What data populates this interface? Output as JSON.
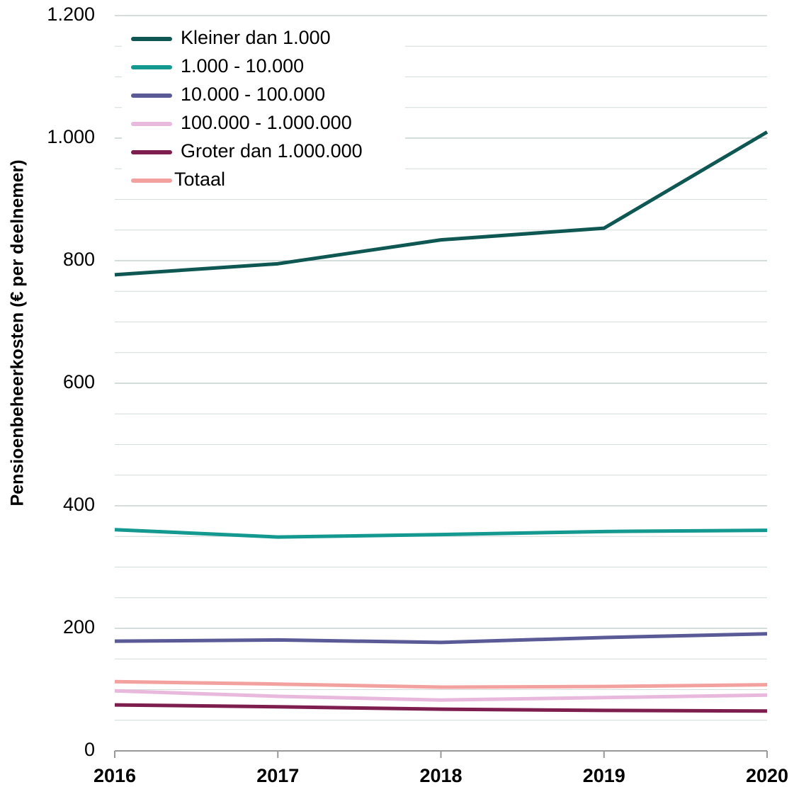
{
  "chart_data": {
    "type": "line",
    "y_label": "Pensioenbeheerkosten (€ per deelnemer)",
    "categories": [
      "2016",
      "2017",
      "2018",
      "2019",
      "2020"
    ],
    "series": [
      {
        "name": "Kleiner dan 1.000",
        "color": "#0f5752",
        "values": [
          777,
          795,
          834,
          853,
          1010
        ]
      },
      {
        "name": "1.000 - 10.000",
        "color": "#13998f",
        "values": [
          361,
          349,
          353,
          358,
          360
        ]
      },
      {
        "name": "10.000 - 100.000",
        "color": "#5a5a96",
        "values": [
          179,
          181,
          177,
          185,
          191
        ]
      },
      {
        "name": "100.000 - 1.000.000",
        "color": "#e8b9dc",
        "values": [
          98,
          89,
          83,
          87,
          91
        ]
      },
      {
        "name": "Groter dan 1.000.000",
        "color": "#7e1e4f",
        "values": [
          75,
          72,
          68,
          66,
          65
        ]
      },
      {
        "name": "Totaal",
        "color": "#f2a19e",
        "values": [
          113,
          109,
          104,
          105,
          108
        ]
      }
    ],
    "ylim": [
      0,
      1200
    ],
    "yticks": [
      0,
      200,
      400,
      600,
      800,
      {
        "value": 1000,
        "label": "1.000"
      },
      {
        "value": 1200,
        "label": "1.200"
      }
    ],
    "minor_yticks": [
      50,
      100,
      150,
      250,
      300,
      350,
      450,
      500,
      550,
      650,
      700,
      750,
      850,
      900,
      950,
      1050,
      1100,
      1150
    ],
    "grid": true,
    "legend": "top-left"
  }
}
